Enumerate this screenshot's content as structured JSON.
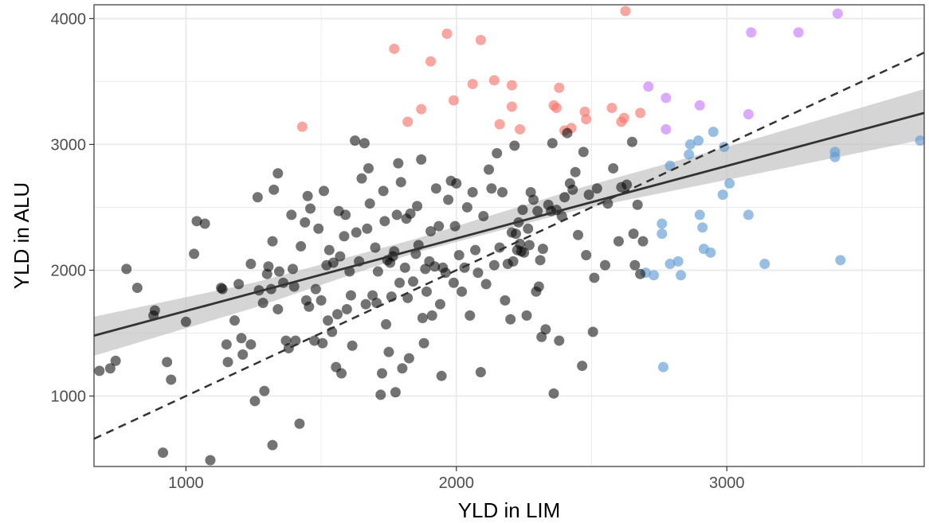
{
  "chart_data": {
    "type": "scatter",
    "title": "",
    "xlabel": "YLD in LIM",
    "ylabel": "YLD in ALU",
    "xlim": [
      660,
      3730
    ],
    "ylim": [
      440,
      4110
    ],
    "x_ticks": [
      1000,
      2000,
      3000
    ],
    "y_ticks": [
      1000,
      2000,
      3000,
      4000
    ],
    "x_minor_ticks": [
      1500,
      2500,
      3500
    ],
    "y_minor_ticks": [
      1500,
      2500,
      3500
    ],
    "grid": true,
    "legend": "none",
    "colors": {
      "black": "#000000",
      "salmon": "#F8766D",
      "blue": "#619CD4",
      "purple": "#C77CFF",
      "fit_line": "#333333",
      "ribbon": "#BEBEBE",
      "grid": "#EBEBEB",
      "frame": "#333333"
    },
    "regression": {
      "x": [
        660,
        3730
      ],
      "y": [
        1480,
        3250
      ]
    },
    "confidence_band": {
      "x": [
        660,
        1250,
        1850,
        2450,
        3050,
        3730
      ],
      "lower": [
        1320,
        1700,
        2140,
        2480,
        2740,
        3040
      ],
      "upper": [
        1630,
        1900,
        2250,
        2650,
        3010,
        3440
      ]
    },
    "identity_line": {
      "x": [
        660,
        3730
      ],
      "y": [
        660,
        3730
      ]
    },
    "series": [
      {
        "color_key": "salmon",
        "points": [
          [
            1430,
            3140
          ],
          [
            1770,
            3760
          ],
          [
            1820,
            3180
          ],
          [
            1870,
            3280
          ],
          [
            1905,
            3660
          ],
          [
            1965,
            3880
          ],
          [
            1990,
            3350
          ],
          [
            2060,
            3480
          ],
          [
            2090,
            3830
          ],
          [
            2140,
            3510
          ],
          [
            2160,
            3160
          ],
          [
            2205,
            3300
          ],
          [
            2205,
            3470
          ],
          [
            2235,
            3120
          ],
          [
            2360,
            3310
          ],
          [
            2370,
            3290
          ],
          [
            2380,
            3450
          ],
          [
            2400,
            3110
          ],
          [
            2425,
            3130
          ],
          [
            2475,
            3260
          ],
          [
            2480,
            3200
          ],
          [
            2575,
            3290
          ],
          [
            2610,
            3180
          ],
          [
            2620,
            3210
          ],
          [
            2625,
            4060
          ],
          [
            2680,
            3250
          ]
        ]
      },
      {
        "color_key": "blue",
        "points": [
          [
            2700,
            1980
          ],
          [
            2730,
            1960
          ],
          [
            2760,
            2370
          ],
          [
            2760,
            2290
          ],
          [
            2765,
            1230
          ],
          [
            2790,
            2050
          ],
          [
            2790,
            2830
          ],
          [
            2820,
            2070
          ],
          [
            2830,
            1960
          ],
          [
            2860,
            2920
          ],
          [
            2865,
            3000
          ],
          [
            2895,
            3030
          ],
          [
            2900,
            2440
          ],
          [
            2910,
            2340
          ],
          [
            2915,
            2170
          ],
          [
            2940,
            2140
          ],
          [
            2950,
            3100
          ],
          [
            2985,
            2600
          ],
          [
            2990,
            2980
          ],
          [
            3010,
            2690
          ],
          [
            3080,
            2440
          ],
          [
            3140,
            2050
          ],
          [
            3400,
            2940
          ],
          [
            3400,
            2900
          ],
          [
            3420,
            2080
          ],
          [
            3715,
            3030
          ]
        ]
      },
      {
        "color_key": "purple",
        "points": [
          [
            2710,
            3460
          ],
          [
            2775,
            3370
          ],
          [
            2775,
            3120
          ],
          [
            2900,
            3310
          ],
          [
            3080,
            3240
          ],
          [
            3090,
            3890
          ],
          [
            3265,
            3890
          ],
          [
            3410,
            4040
          ]
        ]
      },
      {
        "color_key": "black",
        "points": [
          [
            680,
            1200
          ],
          [
            720,
            1220
          ],
          [
            740,
            1280
          ],
          [
            780,
            2010
          ],
          [
            820,
            1860
          ],
          [
            880,
            1640
          ],
          [
            885,
            1680
          ],
          [
            915,
            550
          ],
          [
            930,
            1270
          ],
          [
            945,
            1130
          ],
          [
            1000,
            1590
          ],
          [
            1030,
            2130
          ],
          [
            1040,
            2390
          ],
          [
            1070,
            2370
          ],
          [
            1090,
            490
          ],
          [
            1130,
            1860
          ],
          [
            1135,
            1850
          ],
          [
            1150,
            1410
          ],
          [
            1155,
            1270
          ],
          [
            1180,
            1600
          ],
          [
            1195,
            1890
          ],
          [
            1205,
            1460
          ],
          [
            1210,
            1330
          ],
          [
            1240,
            1410
          ],
          [
            1240,
            2050
          ],
          [
            1255,
            960
          ],
          [
            1265,
            2580
          ],
          [
            1270,
            1840
          ],
          [
            1285,
            1740
          ],
          [
            1290,
            1040
          ],
          [
            1300,
            1970
          ],
          [
            1305,
            2030
          ],
          [
            1315,
            1850
          ],
          [
            1320,
            2230
          ],
          [
            1320,
            610
          ],
          [
            1325,
            2640
          ],
          [
            1340,
            2770
          ],
          [
            1340,
            1690
          ],
          [
            1345,
            1990
          ],
          [
            1360,
            1900
          ],
          [
            1370,
            1440
          ],
          [
            1380,
            1380
          ],
          [
            1390,
            2440
          ],
          [
            1395,
            2010
          ],
          [
            1400,
            1870
          ],
          [
            1405,
            1440
          ],
          [
            1420,
            780
          ],
          [
            1425,
            2190
          ],
          [
            1440,
            2380
          ],
          [
            1445,
            1760
          ],
          [
            1450,
            2590
          ],
          [
            1455,
            1710
          ],
          [
            1460,
            2490
          ],
          [
            1475,
            1440
          ],
          [
            1480,
            1850
          ],
          [
            1490,
            2330
          ],
          [
            1500,
            1760
          ],
          [
            1505,
            1420
          ],
          [
            1510,
            2630
          ],
          [
            1520,
            2040
          ],
          [
            1525,
            1600
          ],
          [
            1530,
            2160
          ],
          [
            1540,
            1510
          ],
          [
            1545,
            2060
          ],
          [
            1555,
            1230
          ],
          [
            1560,
            1650
          ],
          [
            1565,
            2470
          ],
          [
            1570,
            2110
          ],
          [
            1575,
            1180
          ],
          [
            1585,
            2270
          ],
          [
            1590,
            2440
          ],
          [
            1595,
            1690
          ],
          [
            1605,
            1990
          ],
          [
            1610,
            1800
          ],
          [
            1615,
            1400
          ],
          [
            1625,
            3030
          ],
          [
            1630,
            2300
          ],
          [
            1640,
            2070
          ],
          [
            1650,
            2730
          ],
          [
            1660,
            3010
          ],
          [
            1665,
            1730
          ],
          [
            1670,
            2330
          ],
          [
            1675,
            2810
          ],
          [
            1680,
            2530
          ],
          [
            1690,
            1800
          ],
          [
            1700,
            2180
          ],
          [
            1705,
            1740
          ],
          [
            1710,
            1990
          ],
          [
            1720,
            1010
          ],
          [
            1725,
            1180
          ],
          [
            1730,
            2630
          ],
          [
            1735,
            2390
          ],
          [
            1740,
            1570
          ],
          [
            1745,
            2080
          ],
          [
            1750,
            1350
          ],
          [
            1755,
            2060
          ],
          [
            1760,
            1790
          ],
          [
            1765,
            2110
          ],
          [
            1770,
            2150
          ],
          [
            1775,
            1030
          ],
          [
            1780,
            2440
          ],
          [
            1785,
            2850
          ],
          [
            1790,
            1900
          ],
          [
            1795,
            2700
          ],
          [
            1800,
            1220
          ],
          [
            1810,
            2020
          ],
          [
            1815,
            2410
          ],
          [
            1820,
            1780
          ],
          [
            1825,
            1300
          ],
          [
            1830,
            2450
          ],
          [
            1840,
            1910
          ],
          [
            1850,
            2130
          ],
          [
            1855,
            2510
          ],
          [
            1860,
            2200
          ],
          [
            1870,
            2880
          ],
          [
            1875,
            1620
          ],
          [
            1880,
            1420
          ],
          [
            1885,
            2010
          ],
          [
            1890,
            1830
          ],
          [
            1900,
            2070
          ],
          [
            1905,
            2310
          ],
          [
            1910,
            1640
          ],
          [
            1920,
            2030
          ],
          [
            1925,
            2650
          ],
          [
            1935,
            2350
          ],
          [
            1940,
            1730
          ],
          [
            1945,
            1160
          ],
          [
            1950,
            2020
          ],
          [
            1960,
            1980
          ],
          [
            1970,
            2560
          ],
          [
            1980,
            2710
          ],
          [
            1990,
            1900
          ],
          [
            1995,
            2350
          ],
          [
            2000,
            2690
          ],
          [
            2010,
            2120
          ],
          [
            2020,
            1830
          ],
          [
            2030,
            2020
          ],
          [
            2040,
            2500
          ],
          [
            2050,
            1640
          ],
          [
            2060,
            2620
          ],
          [
            2070,
            2160
          ],
          [
            2080,
            1980
          ],
          [
            2090,
            1190
          ],
          [
            2100,
            2430
          ],
          [
            2110,
            1890
          ],
          [
            2120,
            2800
          ],
          [
            2130,
            2650
          ],
          [
            2140,
            2040
          ],
          [
            2150,
            2930
          ],
          [
            2160,
            2180
          ],
          [
            2170,
            2620
          ],
          [
            2180,
            1760
          ],
          [
            2190,
            2050
          ],
          [
            2200,
            1610
          ],
          [
            2205,
            2300
          ],
          [
            2210,
            2070
          ],
          [
            2215,
            2990
          ],
          [
            2220,
            2290
          ],
          [
            2225,
            2160
          ],
          [
            2230,
            2380
          ],
          [
            2235,
            2210
          ],
          [
            2240,
            2150
          ],
          [
            2245,
            2480
          ],
          [
            2250,
            2140
          ],
          [
            2260,
            1640
          ],
          [
            2265,
            2330
          ],
          [
            2270,
            2200
          ],
          [
            2275,
            2620
          ],
          [
            2285,
            2560
          ],
          [
            2295,
            1830
          ],
          [
            2300,
            2470
          ],
          [
            2305,
            1870
          ],
          [
            2310,
            2080
          ],
          [
            2315,
            1470
          ],
          [
            2320,
            2170
          ],
          [
            2330,
            1530
          ],
          [
            2340,
            2520
          ],
          [
            2350,
            2470
          ],
          [
            2355,
            3010
          ],
          [
            2360,
            1020
          ],
          [
            2370,
            2480
          ],
          [
            2380,
            1440
          ],
          [
            2390,
            2430
          ],
          [
            2400,
            2580
          ],
          [
            2410,
            3090
          ],
          [
            2420,
            2690
          ],
          [
            2430,
            2640
          ],
          [
            2440,
            2780
          ],
          [
            2450,
            2280
          ],
          [
            2465,
            1240
          ],
          [
            2470,
            2940
          ],
          [
            2480,
            2120
          ],
          [
            2490,
            2600
          ],
          [
            2505,
            1510
          ],
          [
            2510,
            1940
          ],
          [
            2520,
            2650
          ],
          [
            2550,
            2040
          ],
          [
            2560,
            2530
          ],
          [
            2580,
            2810
          ],
          [
            2600,
            2230
          ],
          [
            2610,
            2660
          ],
          [
            2630,
            2680
          ],
          [
            2650,
            3020
          ],
          [
            2655,
            2290
          ],
          [
            2660,
            2040
          ],
          [
            2670,
            2520
          ],
          [
            2680,
            1970
          ],
          [
            2690,
            2230
          ]
        ]
      }
    ]
  }
}
